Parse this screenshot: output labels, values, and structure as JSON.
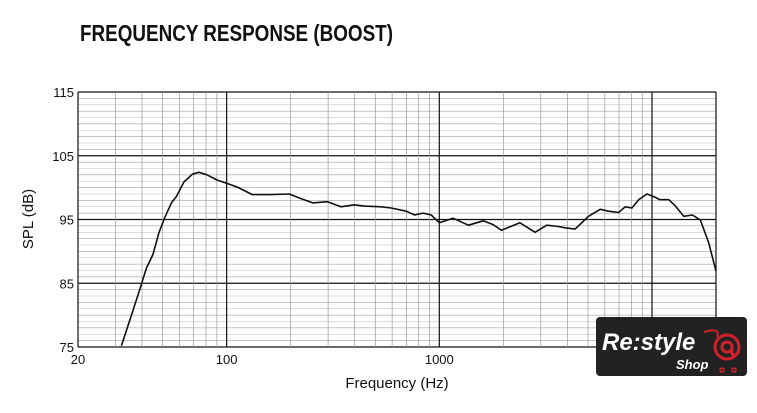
{
  "chart_data": {
    "type": "line",
    "title": "FREQUENCY RESPONSE (BOOST)",
    "xlabel": "Frequency (Hz)",
    "ylabel": "SPL (dB)",
    "xscale": "log",
    "xlim": [
      20,
      20000
    ],
    "ylim": [
      75,
      115
    ],
    "xticks": [
      20,
      100,
      1000
    ],
    "xtick_labels": [
      "20",
      "100",
      "1000"
    ],
    "yticks": [
      75,
      85,
      95,
      105,
      115
    ],
    "ytick_labels": [
      "75",
      "85",
      "95",
      "105",
      "115"
    ],
    "grid": true,
    "line_color": "#111111",
    "series": [
      {
        "x": [
          32,
          36,
          39,
          42,
          45,
          48,
          51,
          55,
          58,
          63,
          69,
          74,
          81,
          90,
          100,
          112,
          132,
          161,
          197,
          223,
          254,
          298,
          345,
          398,
          444,
          533,
          594,
          699,
          765,
          838,
          916,
          1000,
          1160,
          1370,
          1610,
          1790,
          1960,
          2390,
          2820,
          3200,
          3630,
          3900,
          4350,
          5030,
          5710,
          6250,
          6970,
          7480,
          8050,
          8660,
          9470,
          10200,
          10900,
          12000,
          12900,
          14100,
          15500,
          16900,
          18500,
          20000
        ],
        "y": [
          75.2,
          80.4,
          84.0,
          87.4,
          89.5,
          92.9,
          95.2,
          97.6,
          98.6,
          100.9,
          102.1,
          102.4,
          102.0,
          101.2,
          100.7,
          100.1,
          98.9,
          98.9,
          99.0,
          98.3,
          97.6,
          97.8,
          97.0,
          97.3,
          97.1,
          97.0,
          96.8,
          96.3,
          95.7,
          96.0,
          95.7,
          94.5,
          95.2,
          94.1,
          94.8,
          94.2,
          93.3,
          94.5,
          93.0,
          94.1,
          93.9,
          93.7,
          93.5,
          95.5,
          96.6,
          96.3,
          96.1,
          97.0,
          96.8,
          98.1,
          99.0,
          98.6,
          98.1,
          98.1,
          97.1,
          95.5,
          95.7,
          94.9,
          91.3,
          86.9
        ]
      }
    ]
  },
  "logo": {
    "text_main": "Re:style",
    "text_sub": "Shop",
    "accent": "#d0202a"
  }
}
